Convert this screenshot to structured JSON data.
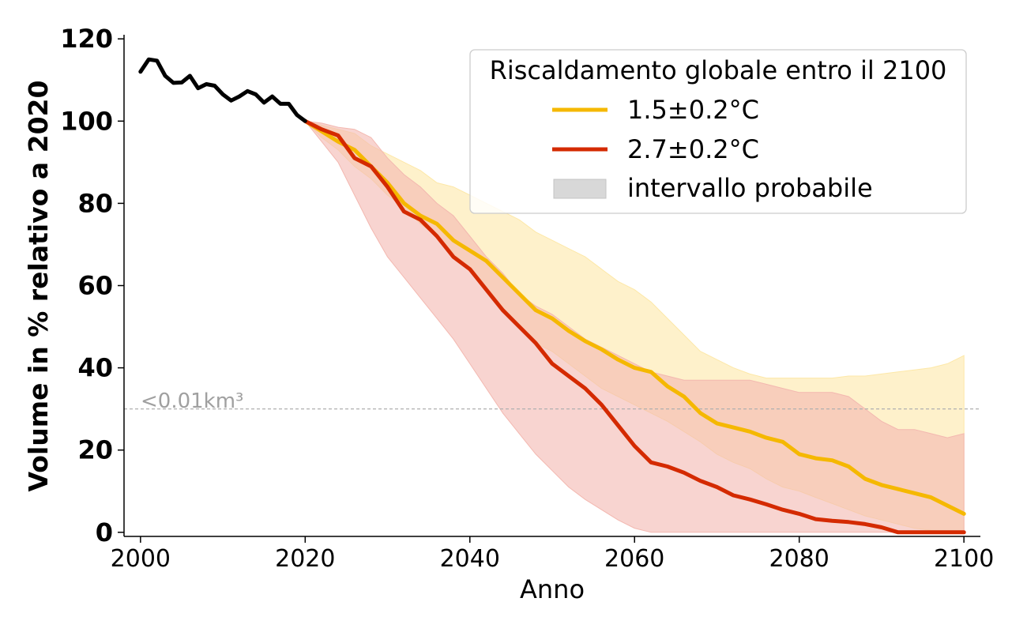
{
  "chart_data": {
    "type": "line",
    "xlabel": "Anno",
    "ylabel": "Volume in % relativo a 2020",
    "xlim": [
      1998,
      2102
    ],
    "ylim": [
      -1,
      121
    ],
    "x_ticks": [
      2000,
      2020,
      2040,
      2060,
      2080,
      2100
    ],
    "y_ticks": [
      0,
      20,
      40,
      60,
      80,
      100,
      120
    ],
    "grid": false,
    "legend": {
      "title": "Riscaldamento globale entro il 2100",
      "placement": "top-right",
      "entries": [
        "1.5±0.2°C",
        "2.7±0.2°C",
        "intervallo probabile"
      ]
    },
    "threshold": {
      "y": 30,
      "label": "<0.01km³",
      "color": "#b0b0b0"
    },
    "history": {
      "color": "#000000",
      "x": [
        2000,
        2001,
        2002,
        2003,
        2004,
        2005,
        2006,
        2007,
        2008,
        2009,
        2010,
        2011,
        2012,
        2013,
        2014,
        2015,
        2016,
        2017,
        2018,
        2019,
        2020
      ],
      "y": [
        112,
        115,
        114.7,
        111,
        109.3,
        109.4,
        111,
        108,
        109,
        108.6,
        106.5,
        105,
        106,
        107.3,
        106.5,
        104.5,
        106,
        104.2,
        104.2,
        101.5,
        100
      ]
    },
    "series": [
      {
        "name": "1.5±0.2°C",
        "color": "#f5b800",
        "band_color": "#fde8a8",
        "x": [
          2020,
          2022,
          2024,
          2026,
          2028,
          2030,
          2032,
          2034,
          2036,
          2038,
          2040,
          2042,
          2044,
          2046,
          2048,
          2050,
          2052,
          2054,
          2056,
          2058,
          2060,
          2062,
          2064,
          2066,
          2068,
          2070,
          2072,
          2074,
          2076,
          2078,
          2080,
          2082,
          2084,
          2086,
          2088,
          2090,
          2092,
          2094,
          2096,
          2098,
          2100
        ],
        "y": [
          100,
          97.5,
          95,
          93,
          89,
          85,
          80,
          77,
          75,
          71,
          68.5,
          66,
          62,
          58,
          54,
          52,
          49,
          46.5,
          44.5,
          42,
          40,
          39,
          35.5,
          33,
          29,
          26.5,
          25.5,
          24.5,
          23,
          22,
          19,
          18,
          17.5,
          16,
          13,
          11.5,
          10.5,
          9.5,
          8.5,
          6.5,
          4.5
        ],
        "lower": [
          100,
          96,
          93,
          89,
          86,
          82,
          79,
          75,
          72,
          68,
          64,
          59,
          54,
          50,
          46,
          44,
          41,
          38,
          35,
          33,
          31,
          29,
          27,
          24.5,
          22,
          19,
          17,
          15.5,
          13,
          11,
          10,
          8.5,
          7,
          5.5,
          4,
          3,
          2,
          1,
          0.5,
          0.2,
          0
        ],
        "upper": [
          100,
          99,
          98,
          97,
          94,
          92,
          90,
          88,
          85,
          84,
          82,
          80,
          78,
          76,
          73,
          71,
          69,
          67,
          64,
          61,
          59,
          56,
          52,
          48,
          44,
          42,
          40,
          38.5,
          37.5,
          37.5,
          37.5,
          37.5,
          37.5,
          38,
          38,
          38.5,
          39,
          39.5,
          40,
          41,
          43
        ]
      },
      {
        "name": "2.7±0.2°C",
        "color": "#d42a00",
        "band_color": "#f3b8b0",
        "x": [
          2020,
          2022,
          2024,
          2026,
          2028,
          2030,
          2032,
          2034,
          2036,
          2038,
          2040,
          2042,
          2044,
          2046,
          2048,
          2050,
          2052,
          2054,
          2056,
          2058,
          2060,
          2062,
          2064,
          2066,
          2068,
          2070,
          2072,
          2074,
          2076,
          2078,
          2080,
          2082,
          2084,
          2086,
          2088,
          2090,
          2092,
          2094,
          2096,
          2098,
          2100
        ],
        "y": [
          100,
          98,
          96.5,
          91,
          89,
          84,
          78,
          76,
          72,
          67,
          64,
          59,
          54,
          50,
          46,
          41,
          38,
          35,
          31,
          26,
          21,
          17,
          16,
          14.5,
          12.5,
          11,
          9,
          8,
          6.8,
          5.5,
          4.5,
          3.2,
          2.8,
          2.5,
          2,
          1.2,
          0,
          0,
          0,
          0,
          0
        ],
        "lower": [
          100,
          95,
          90,
          82,
          74,
          67,
          62,
          57,
          52,
          47,
          41,
          35,
          29,
          24,
          19,
          15,
          11,
          8,
          5.5,
          3,
          1,
          0,
          0,
          0,
          0,
          0,
          0,
          0,
          0,
          0,
          0,
          0,
          0,
          0,
          0,
          0,
          0,
          0,
          0,
          0,
          0
        ],
        "upper": [
          100,
          99.5,
          98.5,
          98,
          96,
          91,
          87,
          84,
          80,
          77,
          72,
          67,
          63,
          58,
          55,
          53,
          50,
          47,
          45,
          43,
          41,
          39,
          38,
          37,
          37,
          37,
          37,
          37,
          36,
          35,
          34,
          34,
          34,
          33,
          30,
          27,
          25,
          25,
          24,
          23,
          24
        ]
      }
    ]
  }
}
